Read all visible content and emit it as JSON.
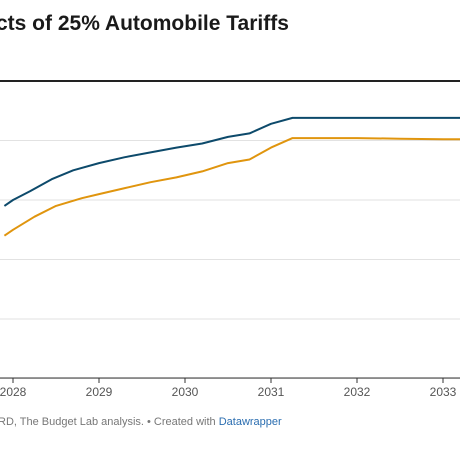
{
  "title": "cts of 25% Automobile Tariffs",
  "footer": {
    "text": "RD, The Budget Lab analysis. • Created with ",
    "link": "Datawrapper"
  },
  "chart_data": {
    "type": "line",
    "title": "cts of 25% Automobile Tariffs",
    "xlabel": "",
    "ylabel": "",
    "x_ticks": [
      "2028",
      "2029",
      "2030",
      "2031",
      "2032",
      "2033"
    ],
    "xlim": [
      2027.9,
      2033.3
    ],
    "grid": true,
    "series": [
      {
        "color": "#0d4a6b",
        "x": [
          2027.9,
          2028.0,
          2028.2,
          2028.45,
          2028.7,
          2029.0,
          2029.3,
          2029.6,
          2029.9,
          2030.2,
          2030.5,
          2030.75,
          2031.0,
          2031.25,
          2031.5,
          2032.0,
          2032.5,
          2033.0,
          2033.3
        ],
        "y": [
          2.9,
          3.0,
          3.15,
          3.35,
          3.5,
          3.62,
          3.72,
          3.8,
          3.88,
          3.95,
          4.06,
          4.12,
          4.28,
          4.38,
          4.38,
          4.38,
          4.38,
          4.38,
          4.38
        ]
      },
      {
        "color": "#e0950e",
        "x": [
          2027.9,
          2028.0,
          2028.25,
          2028.5,
          2028.8,
          2029.0,
          2029.3,
          2029.6,
          2029.9,
          2030.2,
          2030.5,
          2030.75,
          2031.0,
          2031.25,
          2031.5,
          2032.0,
          2032.5,
          2033.0,
          2033.3
        ],
        "y": [
          2.4,
          2.5,
          2.72,
          2.9,
          3.03,
          3.1,
          3.2,
          3.3,
          3.38,
          3.48,
          3.62,
          3.68,
          3.88,
          4.04,
          4.04,
          4.04,
          4.03,
          4.02,
          4.02
        ]
      }
    ]
  }
}
